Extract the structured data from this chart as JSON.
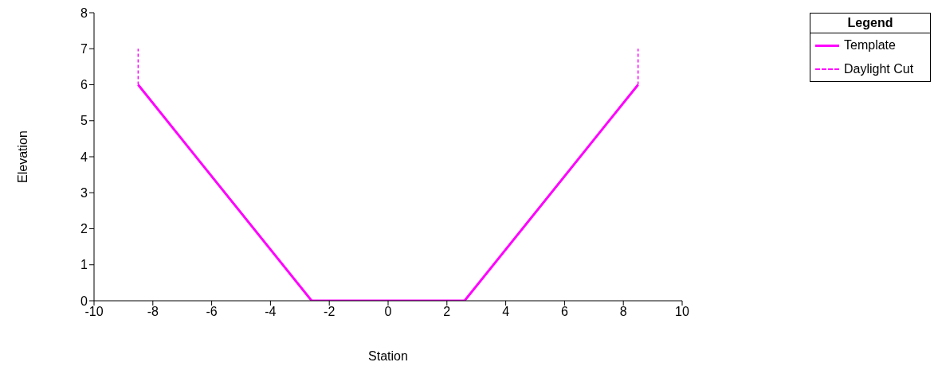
{
  "chart_data": {
    "type": "line",
    "xlabel": "Station",
    "ylabel": "Elevation",
    "legend_title": "Legend",
    "xlim": [
      -10,
      10
    ],
    "xticks": [
      -10,
      -8,
      -6,
      -4,
      -2,
      0,
      2,
      4,
      6,
      8,
      10
    ],
    "ylim": [
      0,
      8
    ],
    "yticks": [
      0,
      1,
      2,
      3,
      4,
      5,
      6,
      7,
      8
    ],
    "grid": false,
    "legend": "top right",
    "marker": "none",
    "series": [
      {
        "name": "Template",
        "color": "#ff00ff",
        "line_style": "solid",
        "x": [
          -8.5,
          -2.6,
          2.6,
          8.5
        ],
        "values": [
          6,
          0,
          0,
          6
        ]
      },
      {
        "name": "Daylight Cut",
        "color": "#ff00ff",
        "line_style": "dashed",
        "x": [
          -8.5,
          -8.5,
          0,
          8.5,
          8.5
        ],
        "values": [
          6,
          7,
          null,
          6,
          7
        ]
      }
    ]
  }
}
